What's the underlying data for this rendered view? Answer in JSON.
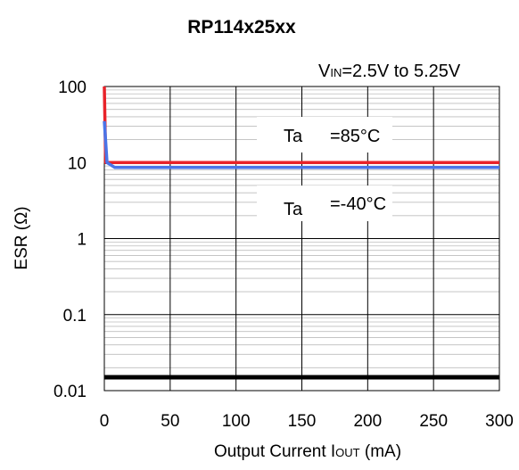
{
  "chart_data": {
    "type": "line",
    "title": "RP114x25xx",
    "condition": {
      "main": "V",
      "sub": "IN",
      "rest": "=2.5V to 5.25V"
    },
    "xlabel": {
      "main": "Output Current I",
      "sub": "OUT",
      "rest": " (mA)"
    },
    "ylabel": "ESR (Ω)",
    "x_ticks": [
      "0",
      "50",
      "100",
      "150",
      "200",
      "250",
      "300"
    ],
    "y_ticks": [
      "100",
      "10",
      "1",
      "0.1",
      "0.01"
    ],
    "xlim": [
      0,
      300
    ],
    "ylim": [
      0.01,
      100
    ],
    "yscale": "log",
    "grid": true,
    "annotations": [
      {
        "label": "Ta",
        "value": "=85°C"
      },
      {
        "label": "Ta",
        "value": "=-40°C"
      }
    ],
    "series": [
      {
        "color": "#e8232a",
        "points": [
          [
            0,
            100
          ],
          [
            1,
            10
          ],
          [
            300,
            10
          ]
        ]
      },
      {
        "color": "#4a74e8",
        "points": [
          [
            0,
            35
          ],
          [
            2,
            10
          ],
          [
            8,
            8.6
          ],
          [
            300,
            8.6
          ]
        ]
      },
      {
        "color": "#000000",
        "points": [
          [
            0,
            0.015
          ],
          [
            300,
            0.015
          ]
        ]
      }
    ]
  }
}
